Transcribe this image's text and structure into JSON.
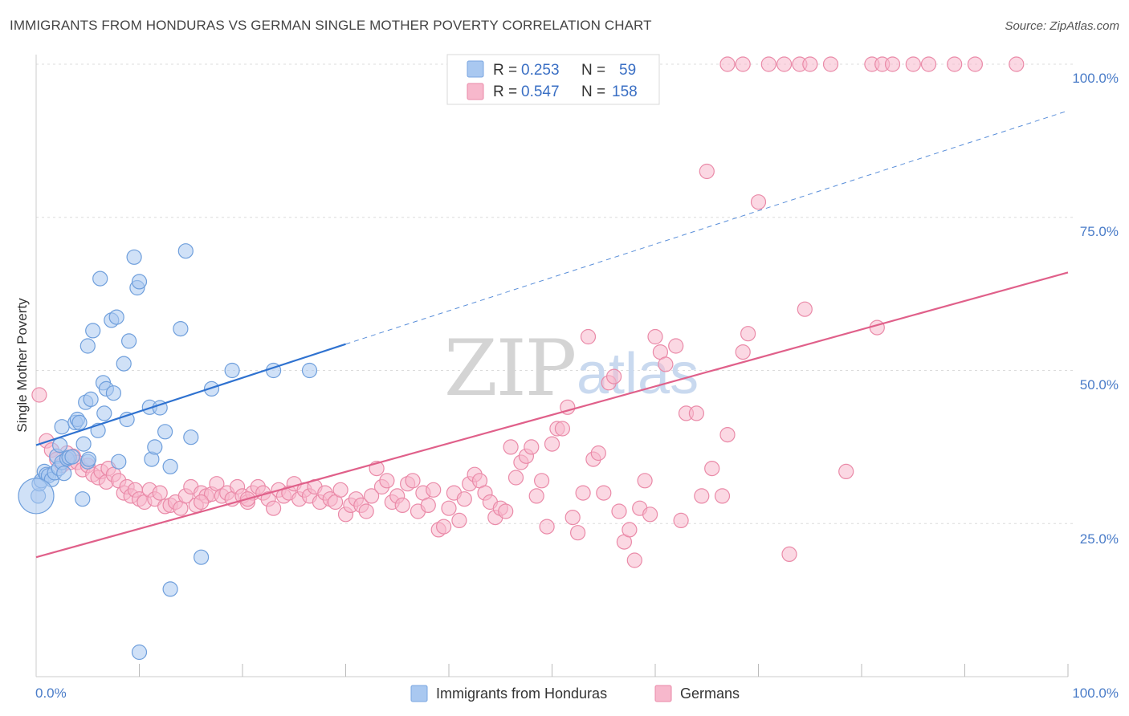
{
  "header": {
    "title": "IMMIGRANTS FROM HONDURAS VS GERMAN SINGLE MOTHER POVERTY CORRELATION CHART",
    "source": "Source: ZipAtlas.com"
  },
  "watermark": {
    "part1": "ZIP",
    "part2": "atlas"
  },
  "stats": [
    {
      "r_label": "R =",
      "r": "0.253",
      "n_label": "N =",
      "n": "59",
      "color": "#a9c8f0"
    },
    {
      "r_label": "R =",
      "r": "0.547",
      "n_label": "N =",
      "n": "158",
      "color": "#f7b8cc"
    }
  ],
  "axis": {
    "ylabel": "Single Mother Poverty",
    "x_ticks": [
      "0.0%",
      "100.0%"
    ],
    "y_ticks": [
      "25.0%",
      "50.0%",
      "75.0%",
      "100.0%"
    ]
  },
  "legend": [
    {
      "label": "Immigrants from Honduras",
      "color": "#a9c8f0"
    },
    {
      "label": "Germans",
      "color": "#f7b8cc"
    }
  ],
  "chart_data": {
    "type": "scatter",
    "xlim": [
      0,
      100
    ],
    "ylim": [
      0,
      100
    ],
    "grid": true,
    "legend_position": "bottom-center",
    "series": [
      {
        "name": "Immigrants from Honduras",
        "color": "#6f9fdc",
        "fill": "#a9c8f0",
        "trend": {
          "x": [
            0,
            30
          ],
          "y": [
            37.8,
            54.3
          ],
          "dash_extension_to": [
            100,
            92.4
          ],
          "color": "#2f72d0"
        },
        "points": [
          [
            0.2,
            29.5
          ],
          [
            0.3,
            31.5
          ],
          [
            0.5,
            32.0
          ],
          [
            0.8,
            33.5
          ],
          [
            1.0,
            33.0
          ],
          [
            1.2,
            32.8
          ],
          [
            1.5,
            32.2
          ],
          [
            1.8,
            33.3
          ],
          [
            2.0,
            36.0
          ],
          [
            2.2,
            34.0
          ],
          [
            2.3,
            37.8
          ],
          [
            2.5,
            35.0
          ],
          [
            2.5,
            40.8
          ],
          [
            2.7,
            33.2
          ],
          [
            3.0,
            35.6
          ],
          [
            3.2,
            35.8
          ],
          [
            3.5,
            35.9
          ],
          [
            3.8,
            41.5
          ],
          [
            4.0,
            42.0
          ],
          [
            4.2,
            41.5
          ],
          [
            4.5,
            29.0
          ],
          [
            4.6,
            38.0
          ],
          [
            4.8,
            44.8
          ],
          [
            5.0,
            35.1
          ],
          [
            5.1,
            35.5
          ],
          [
            5.5,
            56.5
          ],
          [
            5.3,
            45.3
          ],
          [
            6.0,
            40.2
          ],
          [
            6.2,
            65.0
          ],
          [
            6.5,
            48.0
          ],
          [
            6.8,
            47.0
          ],
          [
            6.6,
            43.0
          ],
          [
            7.5,
            46.3
          ],
          [
            7.3,
            58.2
          ],
          [
            7.8,
            58.7
          ],
          [
            8.0,
            35.1
          ],
          [
            8.5,
            51.1
          ],
          [
            8.8,
            42.0
          ],
          [
            9.0,
            54.8
          ],
          [
            9.5,
            68.5
          ],
          [
            9.8,
            63.5
          ],
          [
            10.0,
            64.5
          ],
          [
            11.0,
            44.0
          ],
          [
            11.2,
            35.5
          ],
          [
            11.5,
            37.5
          ],
          [
            12.0,
            43.9
          ],
          [
            12.5,
            40.0
          ],
          [
            13.0,
            34.3
          ],
          [
            14.0,
            56.8
          ],
          [
            14.5,
            69.5
          ],
          [
            15.0,
            39.1
          ],
          [
            16.0,
            19.5
          ],
          [
            17.0,
            47.0
          ],
          [
            19.0,
            50.0
          ],
          [
            23.0,
            50.0
          ],
          [
            26.5,
            50.0
          ],
          [
            13.0,
            14.3
          ],
          [
            10.0,
            4.0
          ],
          [
            5.0,
            54.0
          ]
        ]
      },
      {
        "name": "Germans",
        "color": "#ea8aa8",
        "fill": "#f7b8cc",
        "trend": {
          "x": [
            0,
            100
          ],
          "y": [
            19.5,
            66.0
          ],
          "color": "#e0608a"
        },
        "points": [
          [
            0.3,
            46.0
          ],
          [
            1.0,
            38.5
          ],
          [
            1.5,
            37.0
          ],
          [
            2.0,
            35.5
          ],
          [
            2.5,
            34.5
          ],
          [
            3.0,
            36.5
          ],
          [
            3.3,
            35.0
          ],
          [
            3.6,
            36.0
          ],
          [
            4.0,
            35.0
          ],
          [
            4.5,
            33.8
          ],
          [
            5.0,
            34.5
          ],
          [
            5.5,
            33.0
          ],
          [
            6.0,
            32.5
          ],
          [
            6.3,
            33.5
          ],
          [
            6.8,
            31.8
          ],
          [
            7.0,
            34.0
          ],
          [
            7.5,
            33.0
          ],
          [
            8.0,
            32.0
          ],
          [
            8.5,
            30.0
          ],
          [
            8.8,
            31.0
          ],
          [
            9.2,
            29.5
          ],
          [
            9.6,
            30.5
          ],
          [
            10.0,
            29.0
          ],
          [
            10.5,
            28.5
          ],
          [
            11.0,
            30.5
          ],
          [
            11.5,
            29.0
          ],
          [
            12.0,
            30.0
          ],
          [
            12.5,
            27.8
          ],
          [
            13.0,
            28.0
          ],
          [
            13.5,
            28.5
          ],
          [
            14.0,
            27.5
          ],
          [
            14.5,
            29.5
          ],
          [
            15.0,
            31.0
          ],
          [
            15.5,
            28.0
          ],
          [
            16.0,
            30.0
          ],
          [
            16.5,
            29.5
          ],
          [
            17.0,
            29.8
          ],
          [
            17.5,
            31.5
          ],
          [
            18.0,
            29.5
          ],
          [
            18.5,
            30.0
          ],
          [
            19.0,
            29.0
          ],
          [
            19.5,
            31.0
          ],
          [
            20.0,
            29.5
          ],
          [
            20.5,
            28.5
          ],
          [
            21.0,
            30.0
          ],
          [
            21.5,
            31.0
          ],
          [
            22.0,
            30.0
          ],
          [
            22.5,
            29.0
          ],
          [
            23.0,
            27.5
          ],
          [
            23.5,
            30.5
          ],
          [
            24.0,
            29.5
          ],
          [
            24.5,
            30.0
          ],
          [
            25.0,
            31.5
          ],
          [
            25.5,
            29.0
          ],
          [
            26.0,
            30.5
          ],
          [
            26.5,
            29.5
          ],
          [
            27.0,
            31.0
          ],
          [
            27.5,
            28.5
          ],
          [
            28.0,
            30.0
          ],
          [
            28.5,
            29.0
          ],
          [
            29.0,
            28.5
          ],
          [
            29.5,
            30.5
          ],
          [
            30.0,
            26.5
          ],
          [
            30.5,
            28.0
          ],
          [
            31.0,
            29.0
          ],
          [
            31.5,
            28.0
          ],
          [
            32.0,
            27.0
          ],
          [
            32.5,
            29.5
          ],
          [
            33.0,
            34.0
          ],
          [
            33.5,
            31.0
          ],
          [
            34.0,
            32.0
          ],
          [
            34.5,
            28.5
          ],
          [
            35.0,
            29.5
          ],
          [
            35.5,
            28.0
          ],
          [
            36.0,
            31.5
          ],
          [
            36.5,
            32.0
          ],
          [
            37.0,
            27.0
          ],
          [
            37.5,
            30.0
          ],
          [
            38.0,
            28.0
          ],
          [
            38.5,
            30.5
          ],
          [
            39.0,
            24.0
          ],
          [
            39.5,
            24.5
          ],
          [
            40.0,
            27.5
          ],
          [
            40.5,
            30.0
          ],
          [
            41.0,
            25.5
          ],
          [
            41.5,
            29.0
          ],
          [
            42.0,
            31.5
          ],
          [
            42.5,
            33.0
          ],
          [
            43.0,
            32.0
          ],
          [
            43.5,
            30.0
          ],
          [
            44.0,
            28.5
          ],
          [
            44.5,
            26.0
          ],
          [
            45.0,
            27.5
          ],
          [
            45.5,
            27.0
          ],
          [
            46.0,
            37.5
          ],
          [
            46.5,
            32.5
          ],
          [
            47.0,
            35.0
          ],
          [
            47.5,
            36.0
          ],
          [
            48.0,
            37.5
          ],
          [
            48.5,
            29.5
          ],
          [
            49.0,
            32.0
          ],
          [
            49.5,
            24.5
          ],
          [
            50.0,
            38.0
          ],
          [
            50.5,
            40.5
          ],
          [
            51.0,
            40.5
          ],
          [
            51.5,
            44.0
          ],
          [
            52.0,
            26.0
          ],
          [
            52.5,
            23.5
          ],
          [
            53.0,
            30.0
          ],
          [
            53.5,
            55.5
          ],
          [
            54.0,
            35.5
          ],
          [
            54.5,
            36.5
          ],
          [
            55.0,
            30.0
          ],
          [
            55.5,
            48.0
          ],
          [
            56.0,
            49.0
          ],
          [
            56.5,
            27.0
          ],
          [
            57.0,
            22.0
          ],
          [
            57.5,
            24.0
          ],
          [
            58.0,
            19.0
          ],
          [
            58.5,
            27.5
          ],
          [
            59.0,
            32.0
          ],
          [
            59.5,
            26.5
          ],
          [
            60.0,
            55.5
          ],
          [
            60.5,
            53.0
          ],
          [
            61.0,
            51.0
          ],
          [
            62.0,
            54.0
          ],
          [
            62.5,
            25.5
          ],
          [
            63.0,
            43.0
          ],
          [
            64.0,
            43.0
          ],
          [
            64.5,
            29.5
          ],
          [
            65.0,
            82.5
          ],
          [
            65.5,
            34.0
          ],
          [
            66.5,
            29.5
          ],
          [
            67.0,
            39.5
          ],
          [
            68.5,
            53.0
          ],
          [
            69.0,
            56.0
          ],
          [
            70.0,
            77.5
          ],
          [
            73.0,
            20.0
          ],
          [
            74.5,
            60.0
          ],
          [
            78.5,
            33.5
          ],
          [
            81.5,
            57.0
          ],
          [
            67.0,
            100.0
          ],
          [
            74.0,
            100.0
          ],
          [
            68.5,
            100.0
          ],
          [
            71.0,
            100.0
          ],
          [
            72.5,
            100.0
          ],
          [
            75.0,
            100.0
          ],
          [
            77.0,
            100.0
          ],
          [
            81.0,
            100.0
          ],
          [
            82.0,
            100.0
          ],
          [
            83.0,
            100.0
          ],
          [
            85.0,
            100.0
          ],
          [
            86.5,
            100.0
          ],
          [
            89.0,
            100.0
          ],
          [
            91.0,
            100.0
          ],
          [
            95.0,
            100.0
          ],
          [
            20.5,
            29.0
          ],
          [
            16.0,
            28.5
          ]
        ]
      }
    ]
  }
}
